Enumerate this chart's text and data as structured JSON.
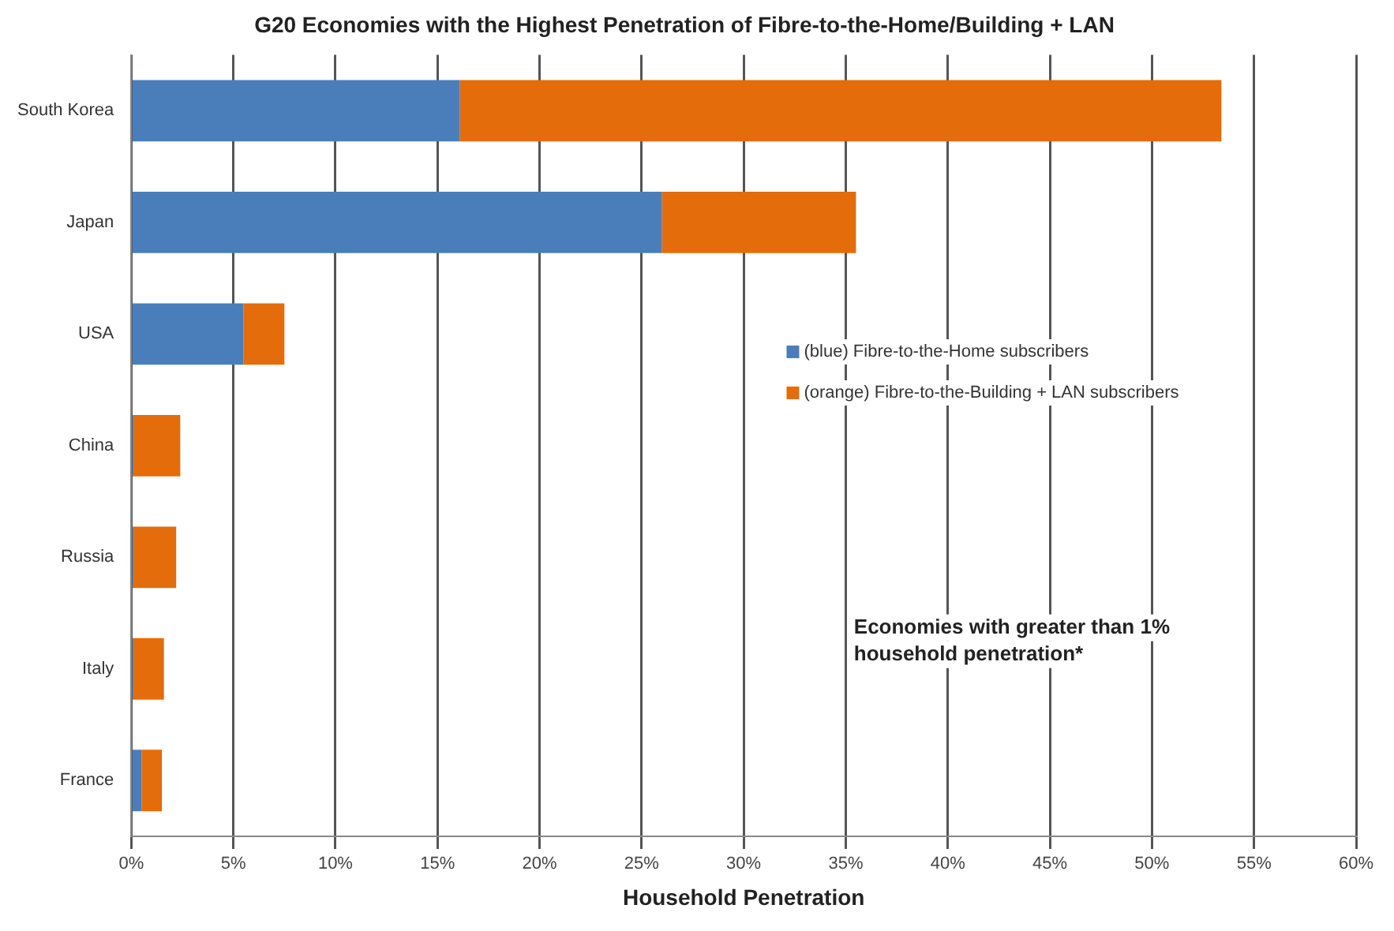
{
  "chart_data": {
    "type": "bar",
    "orientation": "horizontal",
    "stacked": true,
    "title": "G20 Economies with the Highest Penetration of Fibre-to-the-Home/Building + LAN",
    "xlabel": "Household Penetration",
    "categories": [
      "South Korea",
      "Japan",
      "USA",
      "China",
      "Russia",
      "Italy",
      "France"
    ],
    "series": [
      {
        "name": "(blue) Fibre-to-the-Home subscribers",
        "color": "#4a7ebb",
        "values": [
          16.1,
          26.0,
          5.5,
          0.1,
          0.1,
          0.1,
          0.5
        ]
      },
      {
        "name": "(orange) Fibre-to-the-Building + LAN subscribers",
        "color": "#e46c0a",
        "values": [
          37.3,
          9.5,
          2.0,
          2.3,
          2.1,
          1.5,
          1.0
        ]
      }
    ],
    "xlim": [
      0,
      60
    ],
    "xticks": [
      {
        "value": 0,
        "label": "0%"
      },
      {
        "value": 5,
        "label": "5%"
      },
      {
        "value": 10,
        "label": "10%"
      },
      {
        "value": 15,
        "label": "15%"
      },
      {
        "value": 20,
        "label": "20%"
      },
      {
        "value": 25,
        "label": "25%"
      },
      {
        "value": 30,
        "label": "30%"
      },
      {
        "value": 35,
        "label": "35%"
      },
      {
        "value": 40,
        "label": "40%"
      },
      {
        "value": 45,
        "label": "45%"
      },
      {
        "value": 50,
        "label": "50%"
      },
      {
        "value": 55,
        "label": "55%"
      },
      {
        "value": 60,
        "label": "60%"
      }
    ],
    "grid": "x",
    "legend": "right",
    "annotations": [
      "Economies with greater than 1% household penetration*"
    ]
  }
}
